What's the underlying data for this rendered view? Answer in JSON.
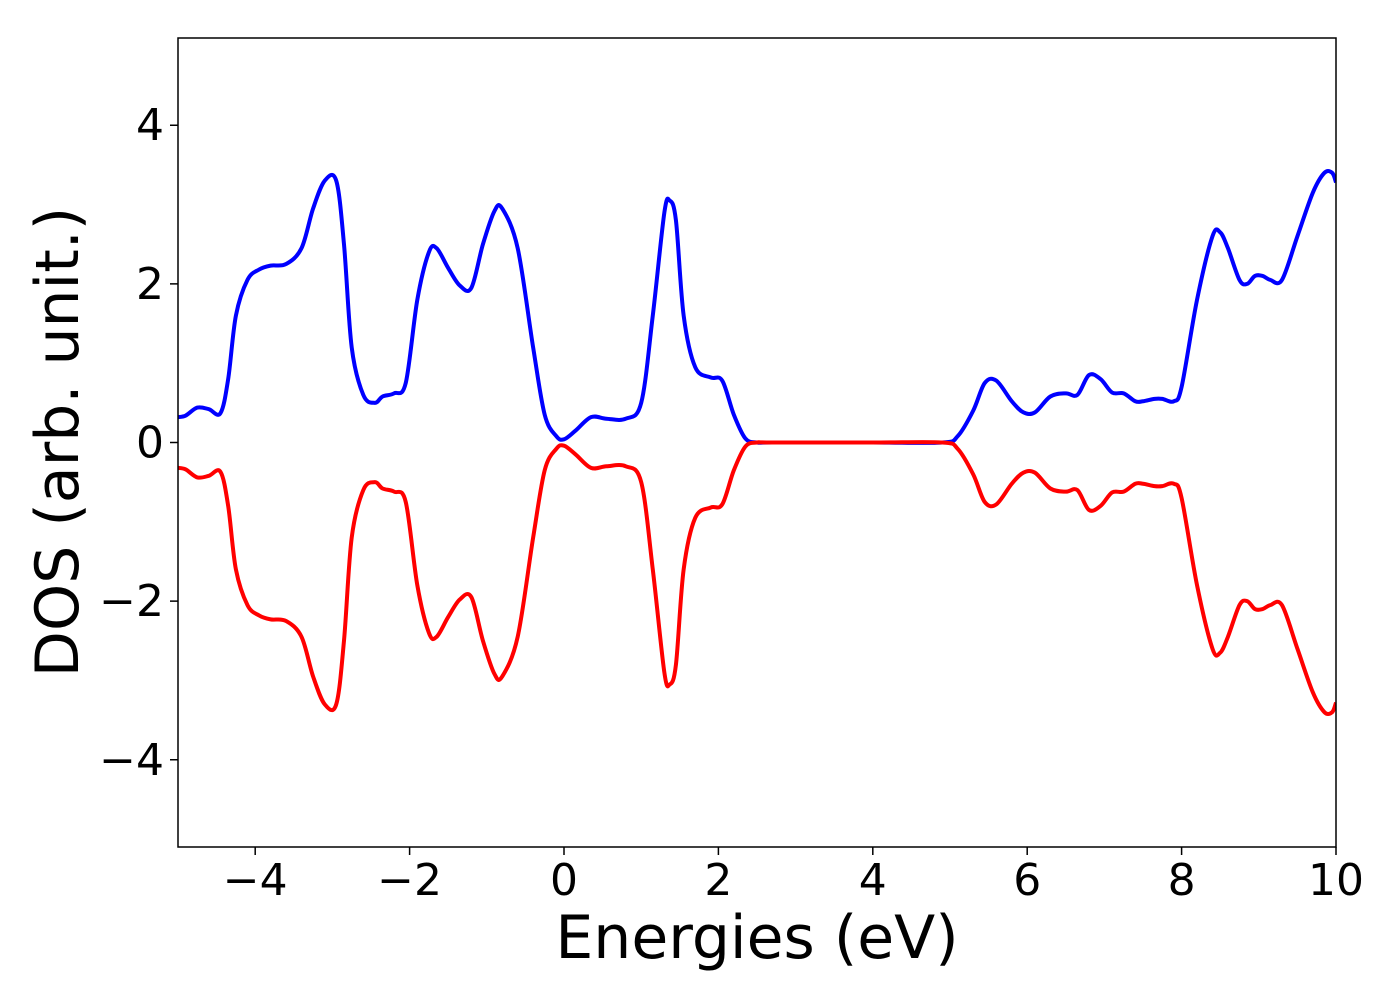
{
  "chart_data": {
    "type": "line",
    "xlabel": "Energies (eV)",
    "ylabel": "DOS (arb. unit.)",
    "xlim": [
      -5,
      10
    ],
    "ylim": [
      -5.1,
      5.1
    ],
    "x_ticks": [
      {
        "value": -4,
        "label": "−4"
      },
      {
        "value": -2,
        "label": "−2"
      },
      {
        "value": 0,
        "label": "0"
      },
      {
        "value": 2,
        "label": "2"
      },
      {
        "value": 4,
        "label": "4"
      },
      {
        "value": 6,
        "label": "6"
      },
      {
        "value": 8,
        "label": "8"
      },
      {
        "value": 10,
        "label": "10"
      }
    ],
    "y_ticks": [
      {
        "value": 4,
        "label": "4"
      },
      {
        "value": 2,
        "label": "2"
      },
      {
        "value": 0,
        "label": "0"
      },
      {
        "value": -2,
        "label": "−2"
      },
      {
        "value": -4,
        "label": "−4"
      }
    ],
    "grid": false,
    "legend": "none",
    "series": [
      {
        "color": "#0000ff",
        "x": [
          -5.0,
          -4.9,
          -4.75,
          -4.6,
          -4.45,
          -4.35,
          -4.25,
          -4.1,
          -3.95,
          -3.8,
          -3.6,
          -3.4,
          -3.25,
          -3.1,
          -2.95,
          -2.85,
          -2.75,
          -2.6,
          -2.45,
          -2.35,
          -2.2,
          -2.05,
          -1.9,
          -1.75,
          -1.65,
          -1.5,
          -1.35,
          -1.2,
          -1.05,
          -0.9,
          -0.8,
          -0.6,
          -0.4,
          -0.25,
          -0.1,
          0.0,
          0.15,
          0.35,
          0.55,
          0.8,
          1.0,
          1.15,
          1.3,
          1.37,
          1.45,
          1.55,
          1.7,
          1.9,
          2.05,
          2.2,
          2.35,
          2.5,
          2.7,
          4.0,
          4.9,
          5.1,
          5.3,
          5.45,
          5.6,
          5.8,
          5.95,
          6.1,
          6.3,
          6.5,
          6.65,
          6.8,
          6.95,
          7.1,
          7.25,
          7.4,
          7.5,
          7.65,
          7.75,
          7.9,
          8.0,
          8.2,
          8.4,
          8.5,
          8.6,
          8.75,
          8.85,
          8.95,
          9.05,
          9.15,
          9.3,
          9.5,
          9.7,
          9.85,
          9.95,
          10.0
        ],
        "y": [
          0.32,
          0.34,
          0.44,
          0.42,
          0.37,
          0.8,
          1.6,
          2.05,
          2.18,
          2.23,
          2.25,
          2.45,
          2.95,
          3.3,
          3.3,
          2.5,
          1.2,
          0.6,
          0.5,
          0.58,
          0.62,
          0.75,
          1.8,
          2.4,
          2.45,
          2.2,
          1.98,
          1.95,
          2.5,
          2.92,
          2.95,
          2.45,
          1.2,
          0.35,
          0.08,
          0.04,
          0.15,
          0.32,
          0.3,
          0.3,
          0.5,
          1.6,
          2.9,
          3.05,
          2.8,
          1.6,
          0.95,
          0.82,
          0.78,
          0.35,
          0.05,
          0.0,
          0.0,
          0.0,
          0.0,
          0.08,
          0.4,
          0.75,
          0.78,
          0.52,
          0.38,
          0.38,
          0.58,
          0.62,
          0.6,
          0.85,
          0.8,
          0.63,
          0.62,
          0.52,
          0.52,
          0.55,
          0.55,
          0.52,
          0.7,
          1.8,
          2.6,
          2.65,
          2.45,
          2.05,
          2.0,
          2.1,
          2.1,
          2.05,
          2.05,
          2.6,
          3.15,
          3.4,
          3.4,
          3.28
        ]
      },
      {
        "color": "#ff0000",
        "x": [
          -5.0,
          -4.9,
          -4.75,
          -4.6,
          -4.45,
          -4.35,
          -4.25,
          -4.1,
          -3.95,
          -3.8,
          -3.6,
          -3.4,
          -3.25,
          -3.1,
          -2.95,
          -2.85,
          -2.75,
          -2.6,
          -2.45,
          -2.35,
          -2.2,
          -2.05,
          -1.9,
          -1.75,
          -1.65,
          -1.5,
          -1.35,
          -1.2,
          -1.05,
          -0.9,
          -0.8,
          -0.6,
          -0.4,
          -0.25,
          -0.1,
          0.0,
          0.15,
          0.35,
          0.55,
          0.8,
          1.0,
          1.15,
          1.3,
          1.37,
          1.45,
          1.55,
          1.7,
          1.9,
          2.05,
          2.2,
          2.35,
          2.5,
          2.7,
          4.0,
          4.9,
          5.1,
          5.3,
          5.45,
          5.6,
          5.8,
          5.95,
          6.1,
          6.3,
          6.5,
          6.65,
          6.8,
          6.95,
          7.1,
          7.25,
          7.4,
          7.5,
          7.65,
          7.75,
          7.9,
          8.0,
          8.2,
          8.4,
          8.5,
          8.6,
          8.75,
          8.85,
          8.95,
          9.05,
          9.15,
          9.3,
          9.5,
          9.7,
          9.85,
          9.95,
          10.0
        ],
        "y": [
          -0.32,
          -0.34,
          -0.44,
          -0.42,
          -0.37,
          -0.8,
          -1.6,
          -2.05,
          -2.18,
          -2.23,
          -2.25,
          -2.45,
          -2.95,
          -3.3,
          -3.3,
          -2.5,
          -1.2,
          -0.6,
          -0.5,
          -0.58,
          -0.62,
          -0.75,
          -1.8,
          -2.4,
          -2.45,
          -2.2,
          -1.98,
          -1.95,
          -2.5,
          -2.92,
          -2.95,
          -2.45,
          -1.2,
          -0.35,
          -0.08,
          -0.04,
          -0.15,
          -0.32,
          -0.3,
          -0.3,
          -0.5,
          -1.6,
          -2.9,
          -3.05,
          -2.8,
          -1.6,
          -0.95,
          -0.82,
          -0.78,
          -0.35,
          -0.05,
          0.0,
          0.0,
          0.0,
          0.0,
          -0.08,
          -0.4,
          -0.75,
          -0.78,
          -0.52,
          -0.38,
          -0.38,
          -0.58,
          -0.62,
          -0.6,
          -0.85,
          -0.8,
          -0.63,
          -0.62,
          -0.52,
          -0.52,
          -0.55,
          -0.55,
          -0.52,
          -0.7,
          -1.8,
          -2.6,
          -2.65,
          -2.45,
          -2.05,
          -2.0,
          -2.1,
          -2.1,
          -2.05,
          -2.05,
          -2.6,
          -3.15,
          -3.4,
          -3.4,
          -3.28
        ]
      }
    ]
  }
}
